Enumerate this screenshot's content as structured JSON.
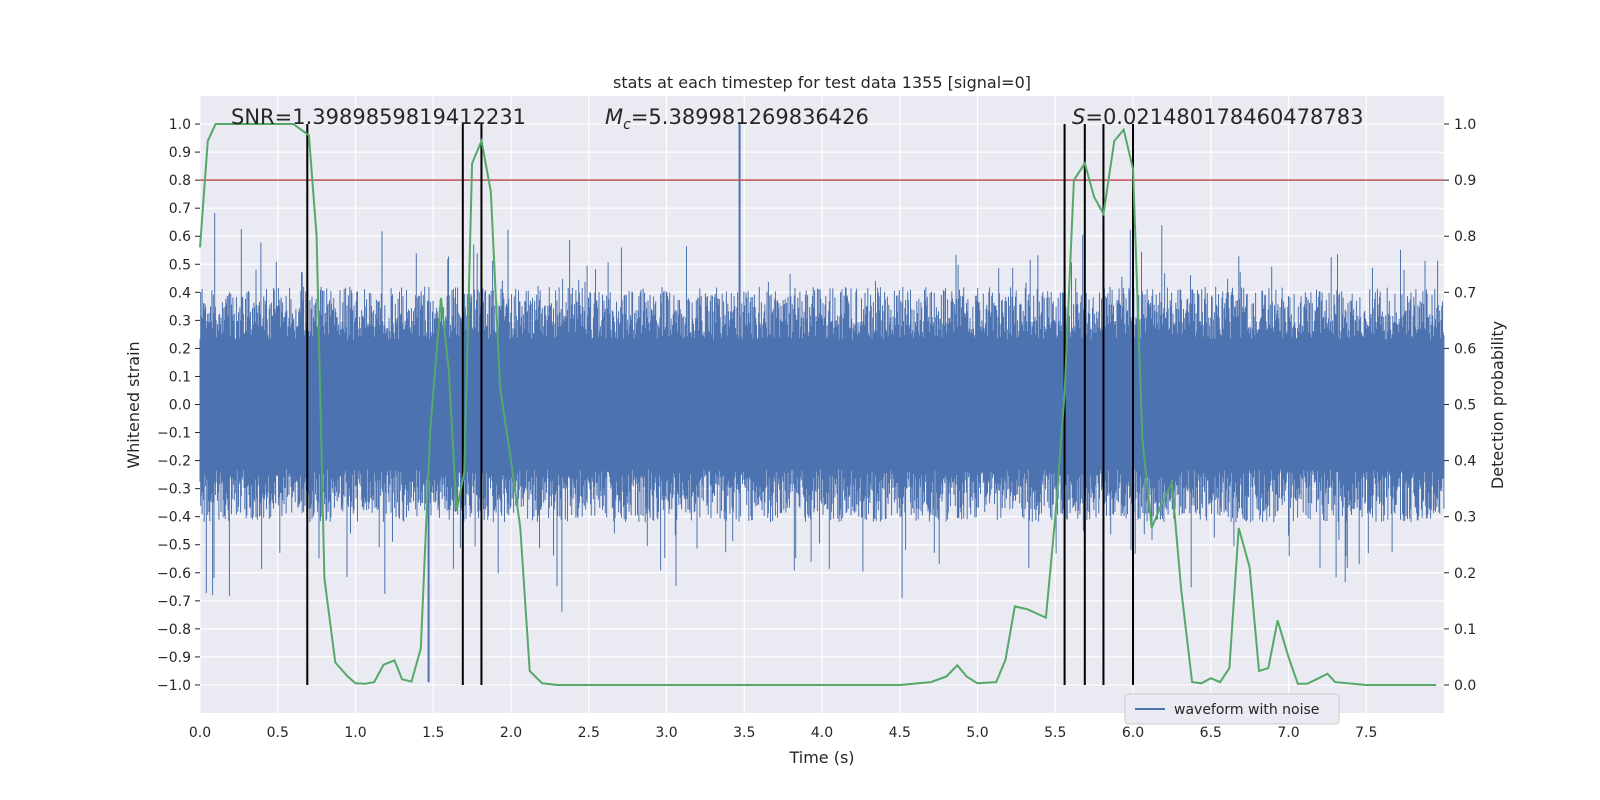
{
  "chart_data": {
    "type": "line",
    "title": "stats at each timestep for test data 1355 [signal=0]",
    "xlabel": "Time (s)",
    "ylabel_left": "Whitened strain",
    "ylabel_right": "Detection probability",
    "xlim": [
      0,
      8
    ],
    "ylim_left": [
      -1.1,
      1.1
    ],
    "ylim_right": [
      -0.05,
      1.05
    ],
    "x_ticks": [
      "0.0",
      "0.5",
      "1.0",
      "1.5",
      "2.0",
      "2.5",
      "3.0",
      "3.5",
      "4.0",
      "4.5",
      "5.0",
      "5.5",
      "6.0",
      "6.5",
      "7.0",
      "7.5"
    ],
    "y_left_ticks": [
      "1.0",
      "0.9",
      "0.8",
      "0.7",
      "0.6",
      "0.5",
      "0.4",
      "0.3",
      "0.2",
      "0.1",
      "0.0",
      "−0.1",
      "−0.2",
      "−0.3",
      "−0.4",
      "−0.5",
      "−0.6",
      "−0.7",
      "−0.8",
      "−0.9",
      "−1.0"
    ],
    "y_right_ticks": [
      "1.0",
      "0.9",
      "0.8",
      "0.7",
      "0.6",
      "0.5",
      "0.4",
      "0.3",
      "0.2",
      "0.1",
      "0.0"
    ],
    "grid": true,
    "legend_position": "bottom-right",
    "annotations": {
      "snr": "SNR=1.3989859819412231",
      "mc_symbol": "M",
      "mc_sub": "c",
      "mc_value": "=5.389981269836426",
      "s_symbol": "S",
      "s_value": "=0.021480178460478783"
    },
    "threshold": {
      "axis": "right",
      "value": 0.9,
      "color": "#c44e52"
    },
    "vertical_markers_x": [
      0.69,
      1.69,
      1.81,
      5.56,
      5.69,
      5.81,
      6.0
    ],
    "series": [
      {
        "name": "waveform with noise",
        "axis": "left",
        "kind": "noise_waveform",
        "color": "#4c72b0",
        "noise_envelope": [
          -0.42,
          0.42
        ],
        "peak_max": 1.0,
        "peak_min": -0.99,
        "peak_max_x": 3.47,
        "peak_min_x": 1.47
      },
      {
        "axis": "right",
        "color": "#55a868",
        "x": [
          0.0,
          0.05,
          0.1,
          0.2,
          0.3,
          0.4,
          0.5,
          0.6,
          0.65,
          0.7,
          0.75,
          0.8,
          0.87,
          0.95,
          1.0,
          1.06,
          1.12,
          1.18,
          1.25,
          1.3,
          1.36,
          1.42,
          1.48,
          1.55,
          1.6,
          1.65,
          1.7,
          1.75,
          1.81,
          1.87,
          1.93,
          2.0,
          2.06,
          2.12,
          2.2,
          2.3,
          2.5,
          2.8,
          3.0,
          3.2,
          3.5,
          3.8,
          4.0,
          4.2,
          4.5,
          4.7,
          4.8,
          4.87,
          4.93,
          5.0,
          5.12,
          5.18,
          5.24,
          5.32,
          5.44,
          5.5,
          5.56,
          5.62,
          5.69,
          5.75,
          5.81,
          5.88,
          5.94,
          6.0,
          6.06,
          6.12,
          6.18,
          6.25,
          6.31,
          6.38,
          6.44,
          6.5,
          6.56,
          6.62,
          6.68,
          6.75,
          6.81,
          6.87,
          6.93,
          7.0,
          7.06,
          7.12,
          7.18,
          7.25,
          7.3,
          7.5,
          7.75,
          7.95
        ],
        "y": [
          0.78,
          0.97,
          1.0,
          1.0,
          1.0,
          1.0,
          1.0,
          1.0,
          0.99,
          0.98,
          0.8,
          0.19,
          0.04,
          0.015,
          0.003,
          0.002,
          0.005,
          0.036,
          0.044,
          0.01,
          0.006,
          0.065,
          0.45,
          0.69,
          0.56,
          0.31,
          0.38,
          0.93,
          0.97,
          0.88,
          0.53,
          0.4,
          0.28,
          0.025,
          0.003,
          0.0,
          0.0,
          0.0,
          0.0,
          0.0,
          0.0,
          0.0,
          0.0,
          0.0,
          0.0,
          0.005,
          0.015,
          0.035,
          0.015,
          0.003,
          0.005,
          0.045,
          0.14,
          0.135,
          0.12,
          0.3,
          0.52,
          0.9,
          0.93,
          0.87,
          0.84,
          0.97,
          0.99,
          0.92,
          0.44,
          0.28,
          0.32,
          0.36,
          0.17,
          0.005,
          0.003,
          0.012,
          0.005,
          0.03,
          0.28,
          0.21,
          0.025,
          0.03,
          0.115,
          0.05,
          0.002,
          0.002,
          0.01,
          0.02,
          0.005,
          0.0,
          0.0,
          0.0
        ]
      }
    ]
  }
}
